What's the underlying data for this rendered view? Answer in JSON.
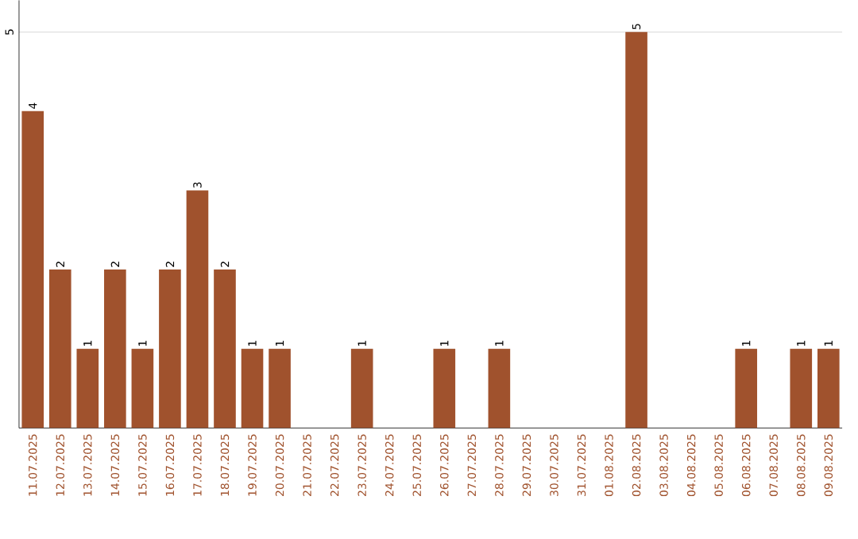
{
  "chart_data": {
    "type": "bar",
    "categories": [
      "11.07.2025",
      "12.07.2025",
      "13.07.2025",
      "14.07.2025",
      "15.07.2025",
      "16.07.2025",
      "17.07.2025",
      "18.07.2025",
      "19.07.2025",
      "20.07.2025",
      "21.07.2025",
      "22.07.2025",
      "23.07.2025",
      "24.07.2025",
      "25.07.2025",
      "26.07.2025",
      "27.07.2025",
      "28.07.2025",
      "29.07.2025",
      "30.07.2025",
      "31.07.2025",
      "01.08.2025",
      "02.08.2025",
      "03.08.2025",
      "04.08.2025",
      "05.08.2025",
      "06.08.2025",
      "07.08.2025",
      "08.08.2025",
      "09.08.2025"
    ],
    "values": [
      4,
      2,
      1,
      2,
      1,
      2,
      3,
      2,
      1,
      1,
      0,
      0,
      1,
      0,
      0,
      1,
      0,
      1,
      0,
      0,
      0,
      0,
      5,
      0,
      0,
      0,
      1,
      0,
      1,
      1
    ],
    "value_labels": [
      "4",
      "2",
      "1",
      "2",
      "1",
      "2",
      "3",
      "2",
      "1",
      "1",
      null,
      null,
      "1",
      null,
      null,
      "1",
      null,
      "1",
      null,
      null,
      null,
      null,
      "5",
      null,
      null,
      null,
      "1",
      null,
      "1",
      "1"
    ],
    "color": "#a0522d",
    "ylim": [
      0,
      5.4
    ],
    "yticks": [
      5
    ],
    "grid": "y"
  }
}
